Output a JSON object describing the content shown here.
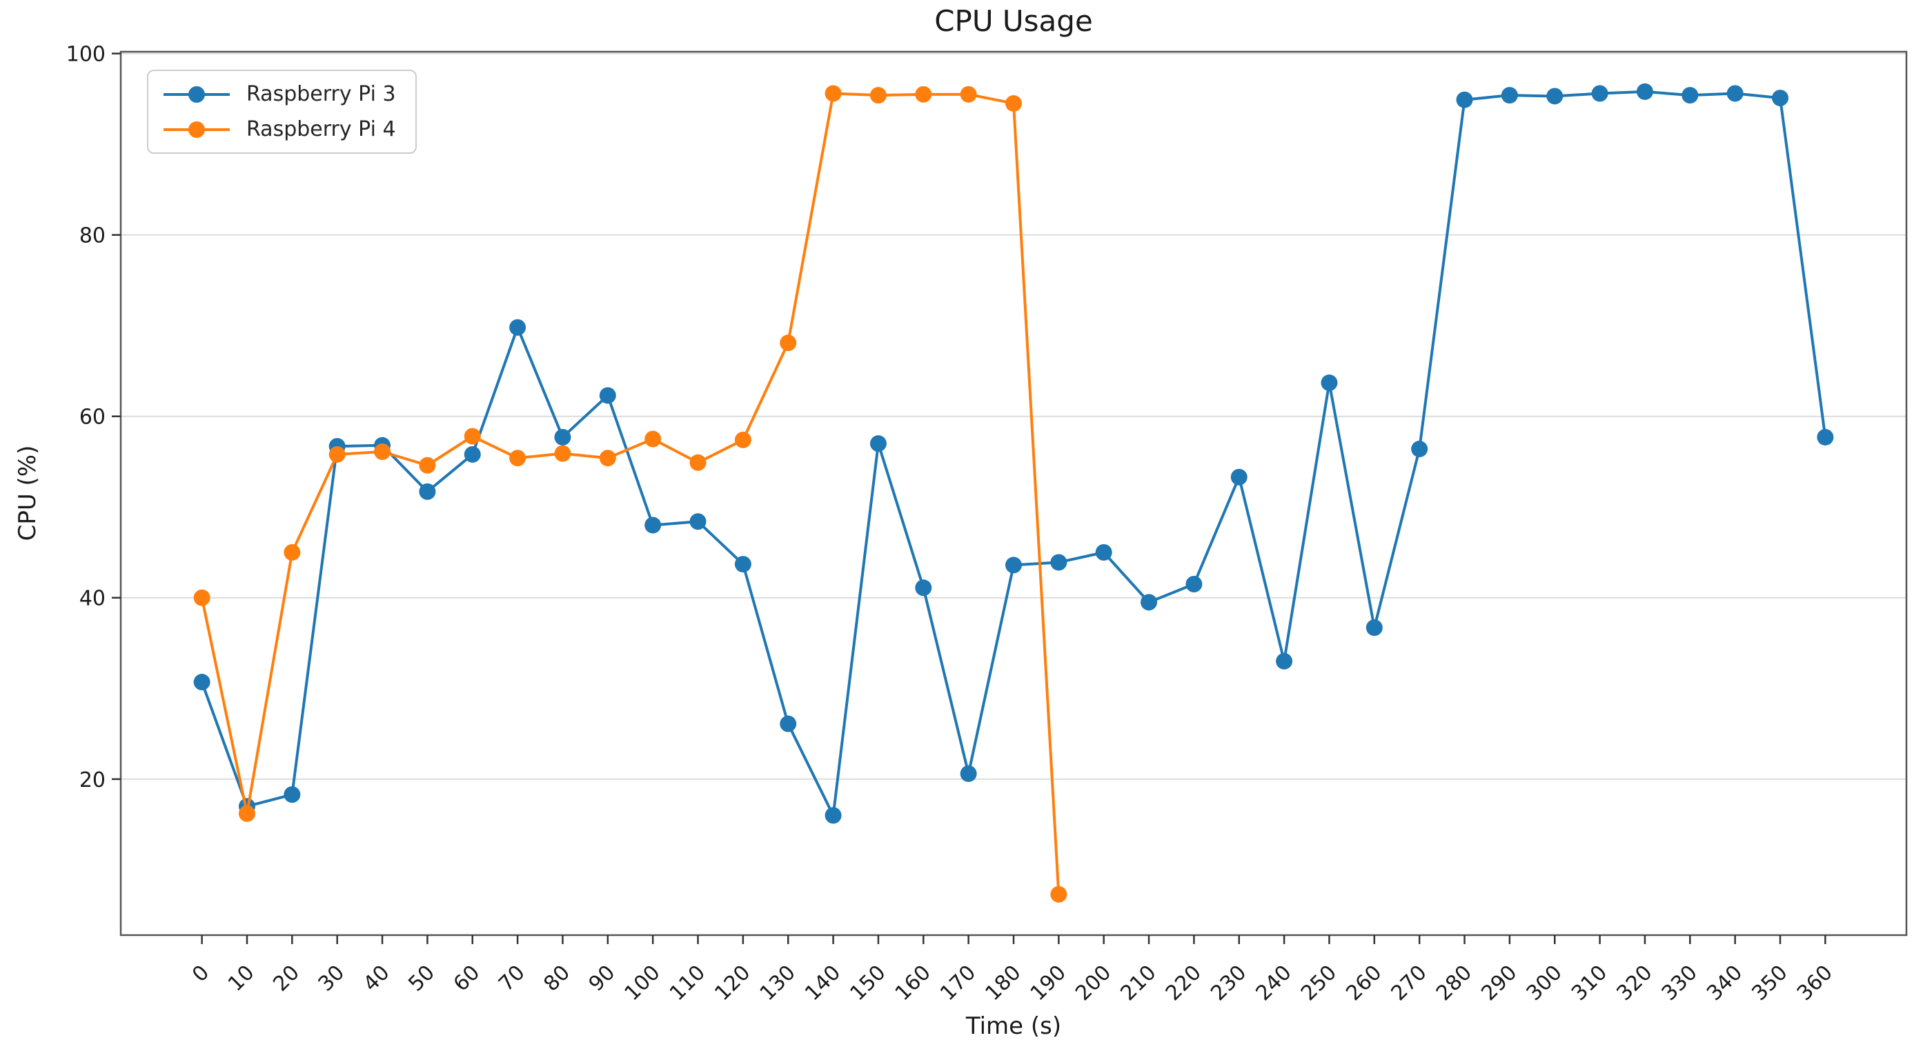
{
  "chart_data": {
    "type": "line",
    "title": "CPU Usage",
    "xlabel": "Time (s)",
    "ylabel": "CPU (%)",
    "legend_position": "upper left",
    "grid": "horizontal-only",
    "background_color": "#ffffff",
    "gridline_color": "#dcdcdc",
    "spine_color": "#555555",
    "tick_color": "#333333",
    "text_color": "#1a1a1a",
    "xlim": [
      -18,
      378
    ],
    "ylim": [
      2.8,
      100.2
    ],
    "x_ticks": [
      0,
      10,
      20,
      30,
      40,
      50,
      60,
      70,
      80,
      90,
      100,
      110,
      120,
      130,
      140,
      150,
      160,
      170,
      180,
      190,
      200,
      210,
      220,
      230,
      240,
      250,
      260,
      270,
      280,
      290,
      300,
      310,
      320,
      330,
      340,
      350,
      360
    ],
    "x_tick_rotation": 45,
    "y_ticks": [
      20,
      40,
      60,
      80,
      100
    ],
    "series": [
      {
        "name": "Raspberry Pi 3",
        "color": "#1f77b4",
        "marker": "circle",
        "x": [
          0,
          10,
          20,
          30,
          40,
          50,
          60,
          70,
          80,
          90,
          100,
          110,
          120,
          130,
          140,
          150,
          160,
          170,
          180,
          190,
          200,
          210,
          220,
          230,
          240,
          250,
          260,
          270,
          280,
          290,
          300,
          310,
          320,
          330,
          340,
          350,
          360
        ],
        "values": [
          30.7,
          17.0,
          18.3,
          56.7,
          56.8,
          51.7,
          55.8,
          69.8,
          57.7,
          62.3,
          48.0,
          48.4,
          43.7,
          26.1,
          16.0,
          57.0,
          41.1,
          20.6,
          43.6,
          43.9,
          45.0,
          39.5,
          41.5,
          53.3,
          33.0,
          63.7,
          36.7,
          56.4,
          94.9,
          95.4,
          95.3,
          95.6,
          95.8,
          95.4,
          95.6,
          95.1,
          57.7
        ]
      },
      {
        "name": "Raspberry Pi 4",
        "color": "#ff7f0e",
        "marker": "circle",
        "x": [
          0,
          10,
          20,
          30,
          40,
          50,
          60,
          70,
          80,
          90,
          100,
          110,
          120,
          130,
          140,
          150,
          160,
          170,
          180,
          190
        ],
        "values": [
          40.0,
          16.2,
          45.0,
          55.8,
          56.1,
          54.6,
          57.8,
          55.4,
          55.9,
          55.4,
          57.5,
          54.9,
          57.4,
          68.1,
          95.6,
          95.4,
          95.5,
          95.5,
          94.5,
          7.3
        ]
      }
    ]
  }
}
